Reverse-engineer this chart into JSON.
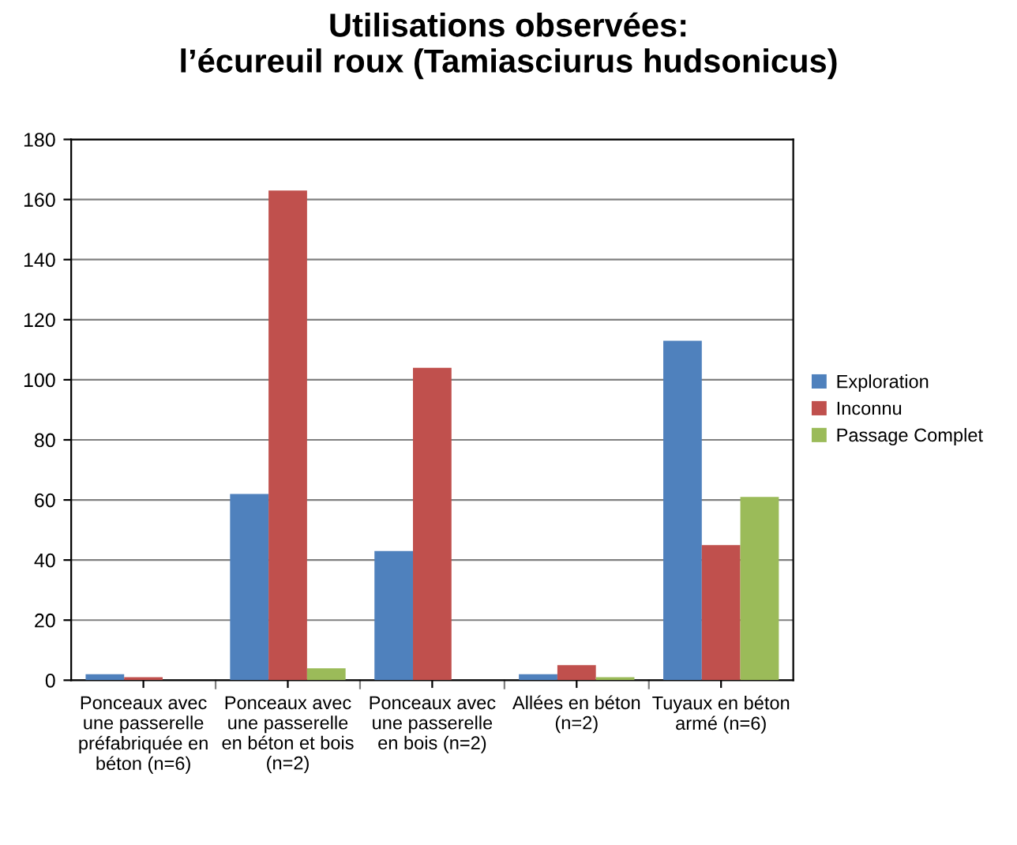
{
  "chart_data": {
    "type": "bar",
    "title": "Utilisations observées:\nl’écureuil roux (Tamiasciurus hudsonicus)",
    "categories": [
      "Ponceaux avec\nune passerelle\npréfabriquée en\nbéton (n=6)",
      "Ponceaux avec\nune passerelle\nen béton et bois\n(n=2)",
      "Ponceaux avec\nune passerelle\nen bois (n=2)",
      "Allées en béton\n(n=2)",
      "Tuyaux en béton\narmé (n=6)"
    ],
    "series": [
      {
        "name": "Exploration",
        "color": "#4f81bd",
        "values": [
          2,
          62,
          43,
          2,
          113
        ]
      },
      {
        "name": "Inconnu",
        "color": "#c0504d",
        "values": [
          1,
          163,
          104,
          5,
          45
        ]
      },
      {
        "name": "Passage Complet",
        "color": "#9bbb59",
        "values": [
          0,
          4,
          0,
          1,
          61
        ]
      }
    ],
    "ylim": [
      0,
      180
    ],
    "yticks": [
      0,
      20,
      40,
      60,
      80,
      100,
      120,
      140,
      160,
      180
    ],
    "grid": "y",
    "legend": "right"
  }
}
